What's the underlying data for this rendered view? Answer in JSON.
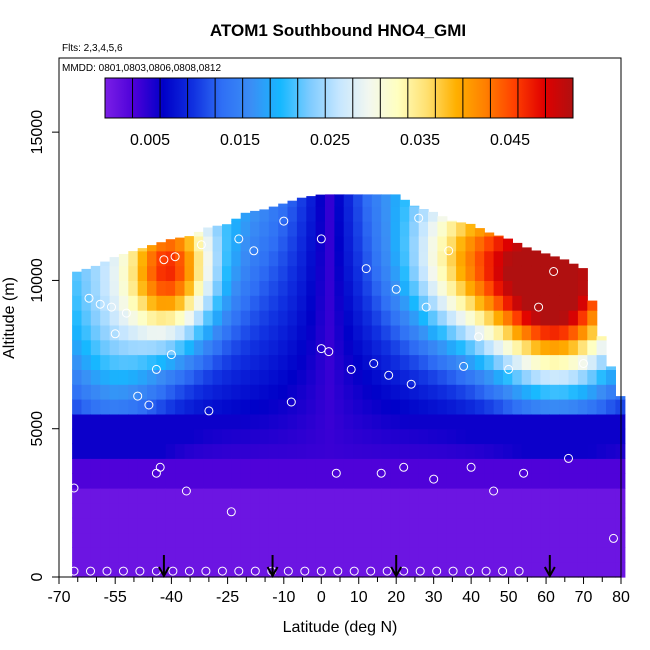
{
  "chart_data": {
    "type": "heatmap",
    "title": "ATOM1 Southbound HNO4_GMI",
    "subtitle_flights": "Flts: 2,3,4,5,6",
    "subtitle_dates": "MMDD: 0801,0803,0806,0808,0812",
    "xlabel": "Latitude (deg N)",
    "ylabel": "Altitude (m)",
    "xlim": [
      -70,
      80
    ],
    "ylim": [
      0,
      17500
    ],
    "x_ticks": [
      -70,
      -55,
      -40,
      -25,
      -10,
      0,
      10,
      20,
      30,
      40,
      50,
      60,
      70,
      80
    ],
    "y_ticks": [
      0,
      5000,
      10000,
      15000
    ],
    "colorbar": {
      "range": [
        0,
        0.052
      ],
      "tick_values": [
        0.005,
        0.015,
        0.025,
        0.035,
        0.045
      ],
      "tick_labels": [
        "0.005",
        "0.015",
        "0.025",
        "0.035",
        "0.045"
      ],
      "colors": [
        "#7b1fe6",
        "#4b00d8",
        "#0000c8",
        "#1030e0",
        "#2f6ff5",
        "#3a8ef5",
        "#16b8ff",
        "#7ecbff",
        "#c5e6ff",
        "#f2f7f0",
        "#ffffc0",
        "#ffe070",
        "#ffb000",
        "#ff7f00",
        "#ff4000",
        "#e00000",
        "#b01010"
      ],
      "position": "top"
    },
    "arrow_latitudes": [
      -42,
      -13,
      20,
      61
    ],
    "profile": {
      "x": [
        -70,
        -65,
        -60,
        -55,
        -50,
        -45,
        -40,
        -35,
        -30,
        -25,
        -20,
        -15,
        -10,
        -5,
        0,
        5,
        10,
        15,
        20,
        25,
        30,
        35,
        40,
        45,
        50,
        55,
        60,
        65,
        70,
        75,
        80
      ],
      "top_altitude": [
        10200,
        10300,
        10500,
        10800,
        11000,
        11200,
        11400,
        11500,
        11800,
        11900,
        12300,
        12400,
        12600,
        12800,
        12900,
        12900,
        12900,
        12900,
        12900,
        12500,
        12300,
        12000,
        11900,
        11600,
        11400,
        11100,
        10900,
        10700,
        10400,
        8000,
        6000
      ]
    },
    "points": {
      "lat": [
        -68,
        -66,
        -62,
        -59,
        -56,
        -55,
        -52,
        -49,
        -46,
        -45,
        -44,
        -44,
        -43,
        -42,
        -40,
        -39,
        -36,
        -32,
        -30,
        -24,
        -22,
        -18,
        -10,
        -8,
        0,
        0,
        2,
        4,
        8,
        12,
        14,
        16,
        18,
        20,
        22,
        24,
        26,
        28,
        30,
        34,
        38,
        40,
        42,
        46,
        50,
        54,
        58,
        62,
        66,
        70,
        74,
        78
      ],
      "alt": [
        10100,
        3000,
        9400,
        9200,
        9100,
        8200,
        8900,
        6100,
        5800,
        11600,
        7000,
        3500,
        3700,
        10700,
        7500,
        10800,
        2900,
        11200,
        5600,
        2200,
        11400,
        11000,
        12000,
        5900,
        7700,
        11400,
        7600,
        3500,
        7000,
        10400,
        7200,
        3500,
        6800,
        9700,
        3700,
        6500,
        12100,
        9100,
        3300,
        11000,
        7100,
        3700,
        8100,
        2900,
        7000,
        3500,
        9100,
        10300,
        4000,
        7200,
        10200,
        1300
      ]
    }
  }
}
